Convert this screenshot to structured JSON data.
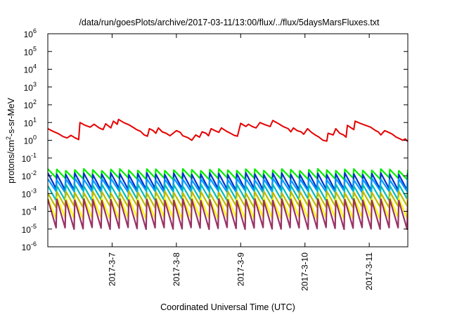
{
  "chart_data": {
    "type": "line",
    "title": "/data/run/goesPlots/archive/2017-03-11/13:00/flux/../flux/5daysMarsFluxes.txt",
    "xlabel": "Coordinated Universal Time (UTC)",
    "ylabel": "protons/cm²-s-sr-MeV",
    "ylabel_parts": {
      "before": "protons/cm",
      "sup": "2",
      "after": "-s-sr-MeV"
    },
    "y_scale": "log",
    "ylim": [
      1e-06,
      1000000.0
    ],
    "y_ticks": [
      {
        "base": "10",
        "exp": "-6",
        "value": 1e-06
      },
      {
        "base": "10",
        "exp": "-5",
        "value": 1e-05
      },
      {
        "base": "10",
        "exp": "-4",
        "value": 0.0001
      },
      {
        "base": "10",
        "exp": "-3",
        "value": 0.001
      },
      {
        "base": "10",
        "exp": "-2",
        "value": 0.01
      },
      {
        "base": "10",
        "exp": "-1",
        "value": 0.1
      },
      {
        "base": "10",
        "exp": "0",
        "value": 1
      },
      {
        "base": "10",
        "exp": "1",
        "value": 10
      },
      {
        "base": "10",
        "exp": "2",
        "value": 100
      },
      {
        "base": "10",
        "exp": "3",
        "value": 1000
      },
      {
        "base": "10",
        "exp": "4",
        "value": 10000
      },
      {
        "base": "10",
        "exp": "5",
        "value": 100000
      },
      {
        "base": "10",
        "exp": "6",
        "value": 1000000
      }
    ],
    "x_range_days": [
      0.0,
      5.6
    ],
    "x_ticks": [
      {
        "label": "2017-3-7",
        "day": 1.0
      },
      {
        "label": "2017-3-8",
        "day": 2.0
      },
      {
        "label": "2017-3-9",
        "day": 3.0
      },
      {
        "label": "2017-3-10",
        "day": 4.0
      },
      {
        "label": "2017-3-11",
        "day": 5.0
      }
    ],
    "grid": false,
    "legend": "none",
    "series": [
      {
        "color": "#e60000",
        "points": [
          [
            0.0,
            4.5
          ],
          [
            0.08,
            3.2
          ],
          [
            0.16,
            2.4
          ],
          [
            0.24,
            1.6
          ],
          [
            0.3,
            1.35
          ],
          [
            0.36,
            1.9
          ],
          [
            0.42,
            1.4
          ],
          [
            0.48,
            1.1
          ],
          [
            0.5,
            10.0
          ],
          [
            0.58,
            7.0
          ],
          [
            0.66,
            5.5
          ],
          [
            0.72,
            8.0
          ],
          [
            0.8,
            5.0
          ],
          [
            0.86,
            4.0
          ],
          [
            0.9,
            8.5
          ],
          [
            0.98,
            5.0
          ],
          [
            1.02,
            12.0
          ],
          [
            1.08,
            8.0
          ],
          [
            1.1,
            15.0
          ],
          [
            1.18,
            10.0
          ],
          [
            1.26,
            7.5
          ],
          [
            1.34,
            5.0
          ],
          [
            1.38,
            4.0
          ],
          [
            1.44,
            3.2
          ],
          [
            1.5,
            2.0
          ],
          [
            1.55,
            1.7
          ],
          [
            1.58,
            4.5
          ],
          [
            1.64,
            3.5
          ],
          [
            1.68,
            2.5
          ],
          [
            1.72,
            5.0
          ],
          [
            1.78,
            3.0
          ],
          [
            1.84,
            2.5
          ],
          [
            1.9,
            1.8
          ],
          [
            2.0,
            3.5
          ],
          [
            2.06,
            2.8
          ],
          [
            2.1,
            1.8
          ],
          [
            2.18,
            1.4
          ],
          [
            2.24,
            1.0
          ],
          [
            2.3,
            2.0
          ],
          [
            2.36,
            1.5
          ],
          [
            2.4,
            3.0
          ],
          [
            2.46,
            2.5
          ],
          [
            2.5,
            1.8
          ],
          [
            2.54,
            4.5
          ],
          [
            2.6,
            3.5
          ],
          [
            2.66,
            2.8
          ],
          [
            2.7,
            5.0
          ],
          [
            2.78,
            3.2
          ],
          [
            2.84,
            2.5
          ],
          [
            2.9,
            1.9
          ],
          [
            2.95,
            1.7
          ],
          [
            3.0,
            9.0
          ],
          [
            3.08,
            6.0
          ],
          [
            3.12,
            8.0
          ],
          [
            3.18,
            6.0
          ],
          [
            3.24,
            5.0
          ],
          [
            3.3,
            10.0
          ],
          [
            3.38,
            7.5
          ],
          [
            3.46,
            6.0
          ],
          [
            3.5,
            13.0
          ],
          [
            3.58,
            9.0
          ],
          [
            3.66,
            6.0
          ],
          [
            3.74,
            4.5
          ],
          [
            3.78,
            3.0
          ],
          [
            3.82,
            5.0
          ],
          [
            3.88,
            3.5
          ],
          [
            3.94,
            3.0
          ],
          [
            3.98,
            2.2
          ],
          [
            4.04,
            4.5
          ],
          [
            4.1,
            2.8
          ],
          [
            4.16,
            2.0
          ],
          [
            4.22,
            1.5
          ],
          [
            4.28,
            1.0
          ],
          [
            4.34,
            0.9
          ],
          [
            4.36,
            2.5
          ],
          [
            4.44,
            2.0
          ],
          [
            4.48,
            4.5
          ],
          [
            4.54,
            2.5
          ],
          [
            4.6,
            2.0
          ],
          [
            4.64,
            1.5
          ],
          [
            4.66,
            7.0
          ],
          [
            4.72,
            5.0
          ],
          [
            4.76,
            4.0
          ],
          [
            4.78,
            12.0
          ],
          [
            4.86,
            9.0
          ],
          [
            4.94,
            7.0
          ],
          [
            5.02,
            5.5
          ],
          [
            5.1,
            3.5
          ],
          [
            5.14,
            3.0
          ],
          [
            5.18,
            2.0
          ],
          [
            5.24,
            3.5
          ],
          [
            5.3,
            2.8
          ],
          [
            5.36,
            2.2
          ],
          [
            5.42,
            1.5
          ],
          [
            5.48,
            1.2
          ],
          [
            5.52,
            1.0
          ],
          [
            5.56,
            1.2
          ],
          [
            5.6,
            0.85
          ]
        ]
      },
      {
        "color": "#00ee00",
        "tooth_high": 0.022,
        "tooth_low": 0.007
      },
      {
        "color": "#0033cc",
        "tooth_high": 0.013,
        "tooth_low": 0.0017
      },
      {
        "color": "#0099ff",
        "tooth_high": 0.0065,
        "tooth_low": 0.0013
      },
      {
        "color": "#00bbbb",
        "tooth_high": 0.003,
        "tooth_low": 0.00045
      },
      {
        "color": "#bbbb00",
        "tooth_high": 0.0012,
        "tooth_low": 0.00018
      },
      {
        "color": "#ffff00",
        "tooth_high": 0.00055,
        "tooth_low": 4e-05
      },
      {
        "color": "#993366",
        "tooth_high": 0.00045,
        "tooth_low": 1.1e-05
      }
    ]
  }
}
